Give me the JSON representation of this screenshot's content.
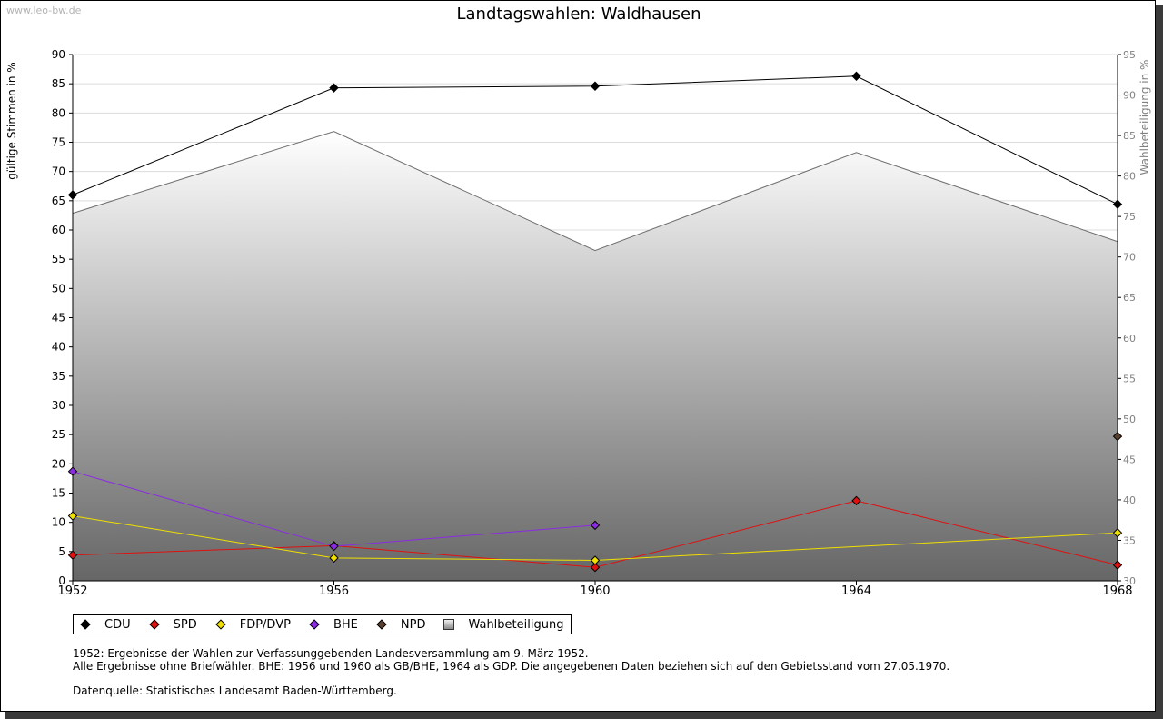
{
  "watermark": "www.leo-bw.de",
  "chart_data": {
    "type": "line",
    "title": "Landtagswahlen: Waldhausen",
    "ylabel": "gültige Stimmen in %",
    "y2label": "Wahlbeteiligung in %",
    "x": [
      "1952",
      "1956",
      "1960",
      "1964",
      "1968"
    ],
    "ylim": [
      0,
      90
    ],
    "y2lim": [
      30,
      95
    ],
    "yticks": [
      "0",
      "5",
      "10",
      "15",
      "20",
      "25",
      "30",
      "35",
      "40",
      "45",
      "50",
      "55",
      "60",
      "65",
      "70",
      "75",
      "80",
      "85",
      "90"
    ],
    "y2ticks": [
      "30",
      "35",
      "40",
      "45",
      "50",
      "55",
      "60",
      "65",
      "70",
      "75",
      "80",
      "85",
      "90",
      "95"
    ],
    "series": [
      {
        "name": "CDU",
        "color": "#000000",
        "values": [
          66.0,
          84.3,
          84.6,
          86.3,
          64.4
        ]
      },
      {
        "name": "SPD",
        "color": "#e01010",
        "values": [
          4.4,
          6.0,
          2.3,
          13.7,
          2.7
        ]
      },
      {
        "name": "FDP/DVP",
        "color": "#f0e000",
        "values": [
          11.1,
          3.9,
          3.5,
          null,
          8.2
        ]
      },
      {
        "name": "BHE",
        "color": "#8a2be2",
        "values": [
          18.7,
          5.9,
          9.5,
          null,
          null
        ]
      },
      {
        "name": "NPD",
        "color": "#5a4030",
        "values": [
          null,
          null,
          null,
          null,
          24.7
        ]
      }
    ],
    "area": {
      "name": "Wahlbeteiligung",
      "axis": "right",
      "values": [
        75.4,
        85.5,
        70.8,
        82.9,
        71.9
      ]
    }
  },
  "notes": [
    "1952: Ergebnisse der Wahlen zur Verfassunggebenden Landesversammlung am 9. März 1952.",
    "Alle Ergebnisse ohne Briefwähler. BHE: 1956 und 1960 als GB/BHE, 1964 als GDP. Die angegebenen Daten beziehen sich auf den Gebietsstand vom 27.05.1970."
  ],
  "source": "Datenquelle: Statistisches Landesamt Baden-Württemberg."
}
